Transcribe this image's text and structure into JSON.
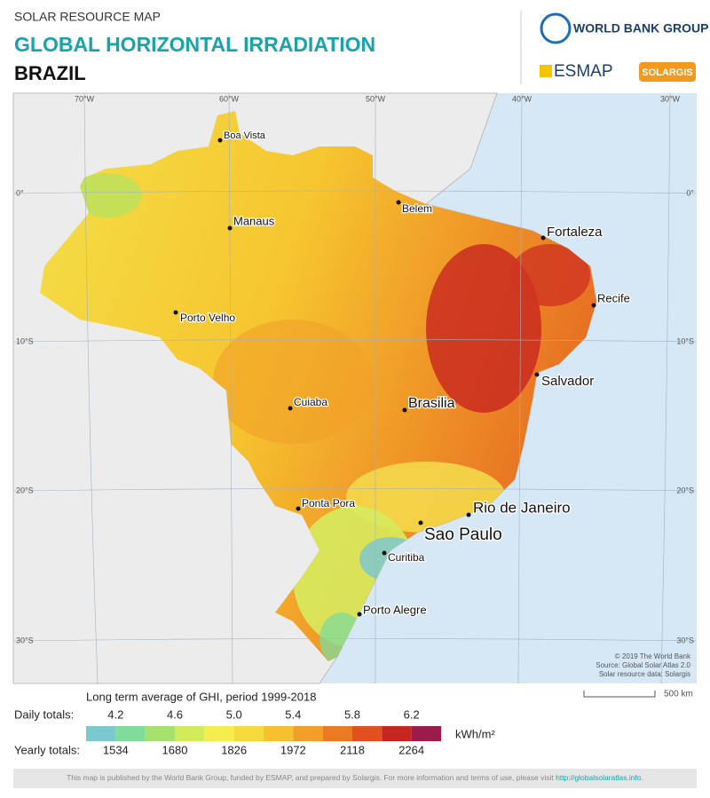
{
  "header": {
    "kicker": "SOLAR RESOURCE MAP",
    "title": "GLOBAL HORIZONTAL IRRADIATION",
    "country": "BRAZIL"
  },
  "logos": {
    "world_bank": "WORLD BANK GROUP",
    "esmap": "ESMAP",
    "solargis": "SOLARGIS"
  },
  "map": {
    "longitudes": [
      "70°W",
      "60°W",
      "50°W",
      "40°W",
      "30°W"
    ],
    "latitudes": [
      "0°",
      "10°S",
      "20°S",
      "30°S"
    ],
    "cities": [
      "Boa Vista",
      "Manaus",
      "Belem",
      "Fortaleza",
      "Recife",
      "Porto Velho",
      "Salvador",
      "Cuiaba",
      "Brasilia",
      "Ponta Pora",
      "Rio de Janeiro",
      "Sao Paulo",
      "Curitiba",
      "Porto Alegre"
    ],
    "credits": [
      "© 2019 The World Bank",
      "Source: Global Solar Atlas 2.0",
      "Solar resource data: Solargis"
    ],
    "scale": "500 km"
  },
  "legend": {
    "title": "Long term average of GHI, period 1999-2018",
    "daily_label": "Daily totals:",
    "daily": [
      "4.2",
      "4.6",
      "5.0",
      "5.4",
      "5.8",
      "6.2"
    ],
    "yearly_label": "Yearly totals:",
    "yearly": [
      "1534",
      "1680",
      "1826",
      "1972",
      "2118",
      "2264"
    ],
    "unit": "kWh/m²",
    "colors": [
      "#7cc8cf",
      "#7fdc9a",
      "#a6e06e",
      "#d2eb5a",
      "#f3ee4e",
      "#f6d93a",
      "#f6c02e",
      "#f39f27",
      "#ec7a22",
      "#e2501f",
      "#c7251f",
      "#9b1b4b"
    ]
  },
  "footer": {
    "text": "This map is published by the World Bank Group, funded by ESMAP, and prepared by Solargis. For more information and terms of use, please visit ",
    "link": "http://globalsolaratlas.info",
    "end": "."
  }
}
